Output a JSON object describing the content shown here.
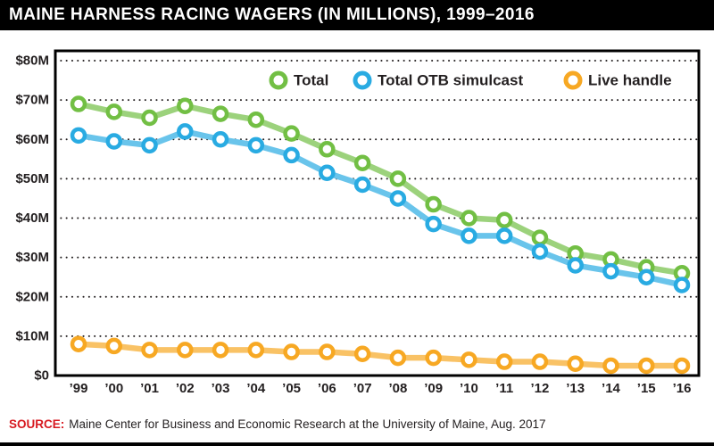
{
  "header": {
    "title": "MAINE HARNESS RACING WAGERS (IN MILLIONS), 1999–2016"
  },
  "footer": {
    "source_label": "SOURCE:",
    "source_label_color": "#d71920",
    "source_text": "Maine Center for Business and Economic Research at the University of Maine, Aug. 2017"
  },
  "chart_data": {
    "type": "line",
    "title": "MAINE HARNESS RACING WAGERS (IN MILLIONS), 1999–2016",
    "xlabel": "",
    "ylabel": "",
    "ylim": [
      0,
      80
    ],
    "grid": "dotted-horizontal",
    "legend_position": "top-inside",
    "categories": [
      "’99",
      "’00",
      "’01",
      "’02",
      "’03",
      "’04",
      "’05",
      "’06",
      "’07",
      "’08",
      "’09",
      "’10",
      "’11",
      "’12",
      "’13",
      "’14",
      "’15",
      "’16"
    ],
    "y_ticks": [
      "$0",
      "$10M",
      "$20M",
      "$30M",
      "$40M",
      "$50M",
      "$60M",
      "$70M",
      "$80M"
    ],
    "series": [
      {
        "name": "Total",
        "marker_color": "#72bf44",
        "line_color": "#9cd27c",
        "values": [
          69,
          67,
          65.5,
          68.5,
          66.5,
          65,
          61.5,
          57.5,
          54,
          50,
          43.5,
          40,
          39.5,
          35,
          31,
          29.5,
          27.5,
          26
        ]
      },
      {
        "name": "Total OTB simulcast",
        "marker_color": "#29abe2",
        "line_color": "#69c4eb",
        "values": [
          61,
          59.5,
          58.5,
          62,
          60,
          58.5,
          56,
          51.5,
          48.5,
          45,
          38.5,
          35.5,
          35.5,
          31.5,
          28,
          26.5,
          25,
          23
        ]
      },
      {
        "name": "Live handle",
        "marker_color": "#f7a823",
        "line_color": "#f9c265",
        "values": [
          8,
          7.5,
          6.5,
          6.5,
          6.5,
          6.5,
          6,
          6,
          5.5,
          4.5,
          4.5,
          4,
          3.5,
          3.5,
          3,
          2.5,
          2.5,
          2.5
        ]
      }
    ]
  }
}
